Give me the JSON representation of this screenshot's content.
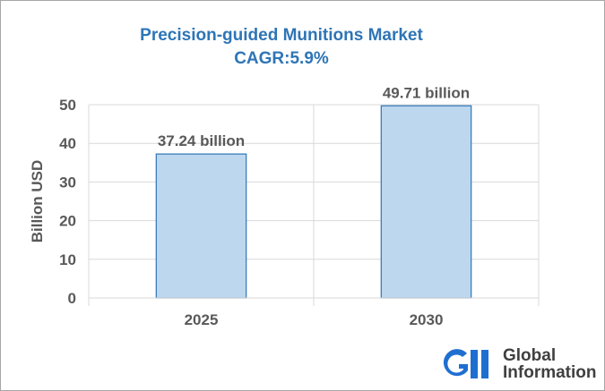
{
  "chart_data": {
    "type": "bar",
    "title": "Precision-guided Munitions Market",
    "subtitle": "CAGR:5.9%",
    "categories": [
      "2025",
      "2030"
    ],
    "values": [
      37.24,
      49.71
    ],
    "data_labels": [
      "37.24 billion",
      "49.71 billion"
    ],
    "xlabel": "",
    "ylabel": "Billion USD",
    "ylim": [
      0,
      50
    ],
    "yticks": [
      "0",
      "10",
      "20",
      "30",
      "40",
      "50"
    ],
    "grid": true,
    "legend": "none",
    "colors": {
      "bar_fill": "#bdd7ee",
      "bar_stroke": "#2e75b6",
      "title": "#2e75b6",
      "grid": "#d9d9d9",
      "text": "#595959"
    }
  },
  "logo": {
    "line1": "Global",
    "line2": "Information",
    "icon": "gii-logo-icon",
    "color": "#1f6fd1"
  }
}
